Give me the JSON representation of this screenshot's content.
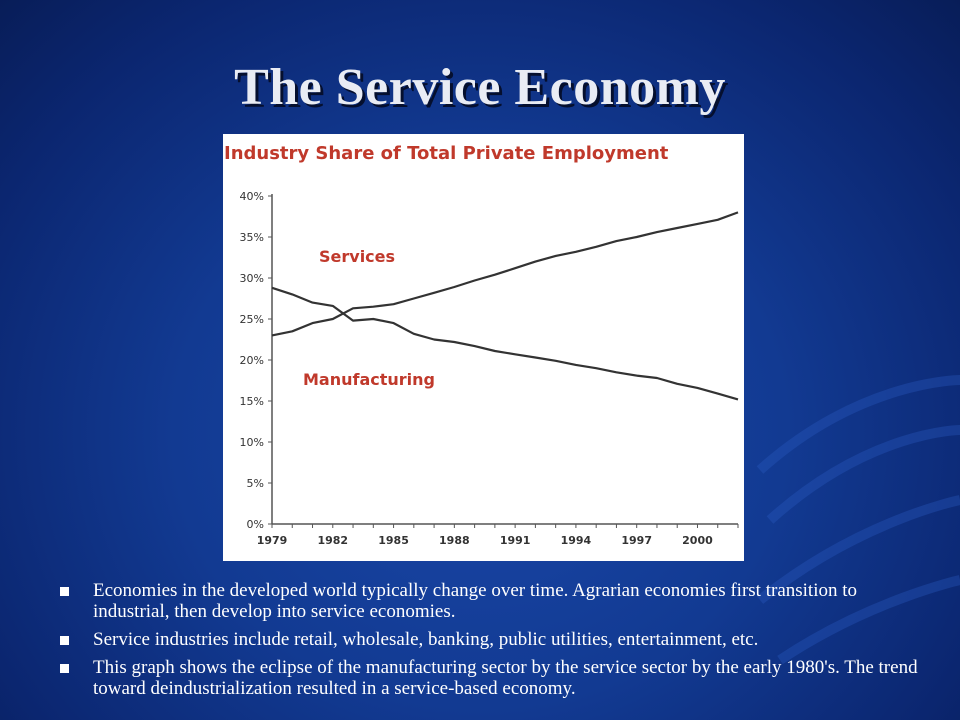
{
  "slide": {
    "title": "The Service Economy",
    "bullets": [
      "Economies in the developed world typically change over time. Agrarian economies first transition to industrial, then develop into service economies.",
      " Service industries include retail, wholesale, banking, public utilities, entertainment, etc.",
      "This graph shows the eclipse of the manufacturing sector by the service sector by the early 1980's.  The trend toward deindustrialization resulted in a service-based economy."
    ],
    "colors": {
      "background": "#123a92",
      "title_text": "#e9ecf4",
      "chart_title": "#c0392b",
      "series_line": "#333333",
      "series_label": "#c0392b"
    }
  },
  "chart_data": {
    "type": "line",
    "title": "Industry Share of Total Private Employment",
    "xlabel": "",
    "ylabel": "",
    "x_ticks": [
      "1979",
      "1982",
      "1985",
      "1988",
      "1991",
      "1994",
      "1997",
      "2000"
    ],
    "y_ticks": [
      "40%",
      "35%",
      "30%",
      "25%",
      "20%",
      "15%",
      "10%",
      "5%",
      "0%"
    ],
    "ylim": [
      0,
      40
    ],
    "xlim": [
      1979,
      2002
    ],
    "grid": false,
    "legend": "inline labels",
    "series": [
      {
        "name": "Services",
        "x": [
          1979,
          1980,
          1981,
          1982,
          1983,
          1984,
          1985,
          1986,
          1987,
          1988,
          1989,
          1990,
          1991,
          1992,
          1993,
          1994,
          1995,
          1996,
          1997,
          1998,
          1999,
          2000,
          2001,
          2002
        ],
        "values": [
          23.0,
          23.5,
          24.5,
          25.0,
          26.3,
          26.5,
          26.8,
          27.5,
          28.2,
          28.9,
          29.7,
          30.4,
          31.2,
          32.0,
          32.7,
          33.2,
          33.8,
          34.5,
          35.0,
          35.6,
          36.1,
          36.6,
          37.1,
          38.0
        ]
      },
      {
        "name": "Manufacturing",
        "x": [
          1979,
          1980,
          1981,
          1982,
          1983,
          1984,
          1985,
          1986,
          1987,
          1988,
          1989,
          1990,
          1991,
          1992,
          1993,
          1994,
          1995,
          1996,
          1997,
          1998,
          1999,
          2000,
          2001,
          2002
        ],
        "values": [
          28.8,
          28.0,
          27.0,
          26.6,
          24.8,
          25.0,
          24.5,
          23.2,
          22.5,
          22.2,
          21.7,
          21.1,
          20.7,
          20.3,
          19.9,
          19.4,
          19.0,
          18.5,
          18.1,
          17.8,
          17.1,
          16.6,
          15.9,
          15.2
        ]
      }
    ]
  }
}
